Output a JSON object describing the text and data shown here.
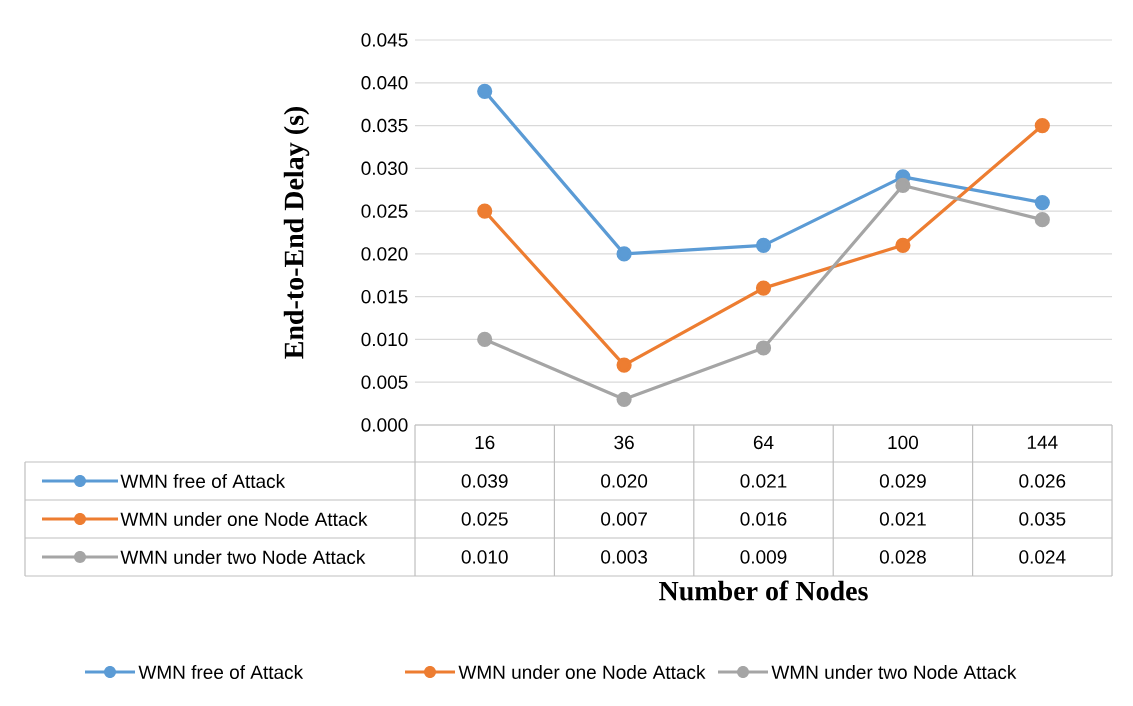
{
  "chart_data": {
    "type": "line",
    "xlabel": "Number of Nodes",
    "ylabel": "End-to-End Delay (s)",
    "categories": [
      "16",
      "36",
      "64",
      "100",
      "144"
    ],
    "series": [
      {
        "name": "WMN free of Attack",
        "color": "#5b9bd5",
        "values": [
          0.039,
          0.02,
          0.021,
          0.029,
          0.026
        ],
        "value_labels": [
          "0.039",
          "0.020",
          "0.021",
          "0.029",
          "0.026"
        ]
      },
      {
        "name": "WMN under one Node Attack",
        "color": "#ed7d31",
        "values": [
          0.025,
          0.007,
          0.016,
          0.021,
          0.035
        ],
        "value_labels": [
          "0.025",
          "0.007",
          "0.016",
          "0.021",
          "0.035"
        ]
      },
      {
        "name": "WMN under two Node Attack",
        "color": "#a5a5a5",
        "values": [
          0.01,
          0.003,
          0.009,
          0.028,
          0.024
        ],
        "value_labels": [
          "0.010",
          "0.003",
          "0.009",
          "0.028",
          "0.024"
        ]
      }
    ],
    "ylim": [
      0,
      0.045
    ],
    "yticks": [
      {
        "value": 0,
        "label": "0.000"
      },
      {
        "value": 0.005,
        "label": "0.005"
      },
      {
        "value": 0.01,
        "label": "0.010"
      },
      {
        "value": 0.015,
        "label": "0.015"
      },
      {
        "value": 0.02,
        "label": "0.020"
      },
      {
        "value": 0.025,
        "label": "0.025"
      },
      {
        "value": 0.03,
        "label": "0.030"
      },
      {
        "value": 0.035,
        "label": "0.035"
      },
      {
        "value": 0.04,
        "label": "0.040"
      },
      {
        "value": 0.045,
        "label": "0.045"
      }
    ],
    "grid": "y",
    "legend": "bottom",
    "marker": "circle",
    "line_style": "solid"
  }
}
